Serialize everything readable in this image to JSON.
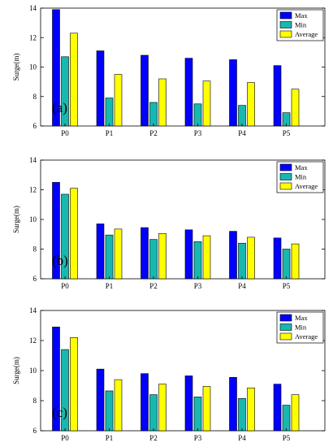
{
  "chart_data": [
    {
      "type": "bar",
      "panel_label": "(a)",
      "ylabel": "Surge(m)",
      "ylim": [
        6,
        14
      ],
      "yticks": [
        6,
        8,
        10,
        12,
        14
      ],
      "categories": [
        "P0",
        "P1",
        "P2",
        "P3",
        "P4",
        "P5"
      ],
      "legend_position": "top-right",
      "series": [
        {
          "name": "Max",
          "color": "#0000ff",
          "values": [
            13.9,
            11.1,
            10.8,
            10.6,
            10.5,
            10.1
          ]
        },
        {
          "name": "Min",
          "color": "#17b8b0",
          "values": [
            10.7,
            7.9,
            7.6,
            7.5,
            7.4,
            6.9
          ]
        },
        {
          "name": "Average",
          "color": "#ffff00",
          "values": [
            12.3,
            9.5,
            9.2,
            9.05,
            8.95,
            8.5
          ]
        }
      ]
    },
    {
      "type": "bar",
      "panel_label": "(b)",
      "ylabel": "Surge(m)",
      "ylim": [
        6,
        14
      ],
      "yticks": [
        6,
        8,
        10,
        12,
        14
      ],
      "categories": [
        "P0",
        "P1",
        "P2",
        "P3",
        "P4",
        "P5"
      ],
      "legend_position": "top-right",
      "series": [
        {
          "name": "Max",
          "color": "#0000ff",
          "values": [
            12.5,
            9.7,
            9.45,
            9.3,
            9.2,
            8.75
          ]
        },
        {
          "name": "Min",
          "color": "#17b8b0",
          "values": [
            11.7,
            8.95,
            8.65,
            8.5,
            8.4,
            8.0
          ]
        },
        {
          "name": "Average",
          "color": "#ffff00",
          "values": [
            12.1,
            9.35,
            9.05,
            8.9,
            8.8,
            8.35
          ]
        }
      ]
    },
    {
      "type": "bar",
      "panel_label": "(c)",
      "ylabel": "Surge(m)",
      "ylim": [
        6,
        14
      ],
      "yticks": [
        6,
        8,
        10,
        12,
        14
      ],
      "categories": [
        "P0",
        "P1",
        "P2",
        "P3",
        "P4",
        "P5"
      ],
      "legend_position": "top-right",
      "series": [
        {
          "name": "Max",
          "color": "#0000ff",
          "values": [
            12.9,
            10.1,
            9.8,
            9.65,
            9.55,
            9.1
          ]
        },
        {
          "name": "Min",
          "color": "#17b8b0",
          "values": [
            11.4,
            8.65,
            8.4,
            8.25,
            8.15,
            7.7
          ]
        },
        {
          "name": "Average",
          "color": "#ffff00",
          "values": [
            12.2,
            9.4,
            9.1,
            8.95,
            8.85,
            8.4
          ]
        }
      ]
    }
  ]
}
